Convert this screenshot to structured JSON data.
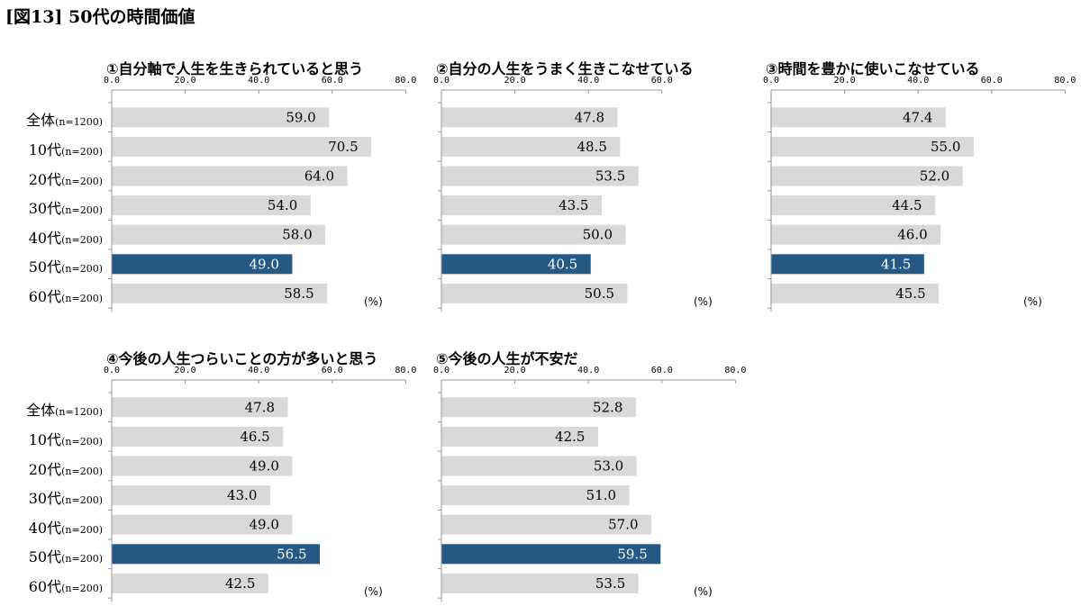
{
  "figure_title": "[図13] 50代の時間価値",
  "unit": "(%)",
  "categories": [
    {
      "name": "全体",
      "n": "(n=1200)"
    },
    {
      "name": "10代",
      "n": "(n=200)"
    },
    {
      "name": "20代",
      "n": "(n=200)"
    },
    {
      "name": "30代",
      "n": "(n=200)"
    },
    {
      "name": "40代",
      "n": "(n=200)"
    },
    {
      "name": "50代",
      "n": "(n=200)"
    },
    {
      "name": "60代",
      "n": "(n=200)"
    }
  ],
  "colors": {
    "bar": "#d9d9d9",
    "highlight": "#255983",
    "axis": "#999999"
  },
  "highlight_index": 5,
  "chart_data": [
    {
      "type": "bar",
      "orientation": "horizontal",
      "title": "①自分軸で人生を生きられていると思う",
      "xlim": [
        0,
        80
      ],
      "ticks": [
        "0.0",
        "20.0",
        "40.0",
        "60.0",
        "80.0"
      ],
      "categories": [
        "全体",
        "10代",
        "20代",
        "30代",
        "40代",
        "50代",
        "60代"
      ],
      "values": [
        59.0,
        70.5,
        64.0,
        54.0,
        58.0,
        49.0,
        58.5
      ]
    },
    {
      "type": "bar",
      "orientation": "horizontal",
      "title": "②自分の人生をうまく生きこなせている",
      "xlim": [
        0,
        60
      ],
      "ticks": [
        "0.0",
        "20.0",
        "40.0",
        "60.0"
      ],
      "categories": [
        "全体",
        "10代",
        "20代",
        "30代",
        "40代",
        "50代",
        "60代"
      ],
      "values": [
        47.8,
        48.5,
        53.5,
        43.5,
        50.0,
        40.5,
        50.5
      ]
    },
    {
      "type": "bar",
      "orientation": "horizontal",
      "title": "③時間を豊かに使いこなせている",
      "xlim": [
        0,
        80
      ],
      "ticks": [
        "0.0",
        "20.0",
        "40.0",
        "60.0",
        "80.0"
      ],
      "categories": [
        "全体",
        "10代",
        "20代",
        "30代",
        "40代",
        "50代",
        "60代"
      ],
      "values": [
        47.4,
        55.0,
        52.0,
        44.5,
        46.0,
        41.5,
        45.5
      ]
    },
    {
      "type": "bar",
      "orientation": "horizontal",
      "title": "④今後の人生つらいことの方が多いと思う",
      "xlim": [
        0,
        80
      ],
      "ticks": [
        "0.0",
        "20.0",
        "40.0",
        "60.0",
        "80.0"
      ],
      "categories": [
        "全体",
        "10代",
        "20代",
        "30代",
        "40代",
        "50代",
        "60代"
      ],
      "values": [
        47.8,
        46.5,
        49.0,
        43.0,
        49.0,
        56.5,
        42.5
      ]
    },
    {
      "type": "bar",
      "orientation": "horizontal",
      "title": "⑤今後の人生が不安だ",
      "xlim": [
        0,
        80
      ],
      "ticks": [
        "0.0",
        "20.0",
        "40.0",
        "60.0",
        "80.0"
      ],
      "categories": [
        "全体",
        "10代",
        "20代",
        "30代",
        "40代",
        "50代",
        "60代"
      ],
      "values": [
        52.8,
        42.5,
        53.0,
        51.0,
        57.0,
        59.5,
        53.5
      ]
    }
  ]
}
